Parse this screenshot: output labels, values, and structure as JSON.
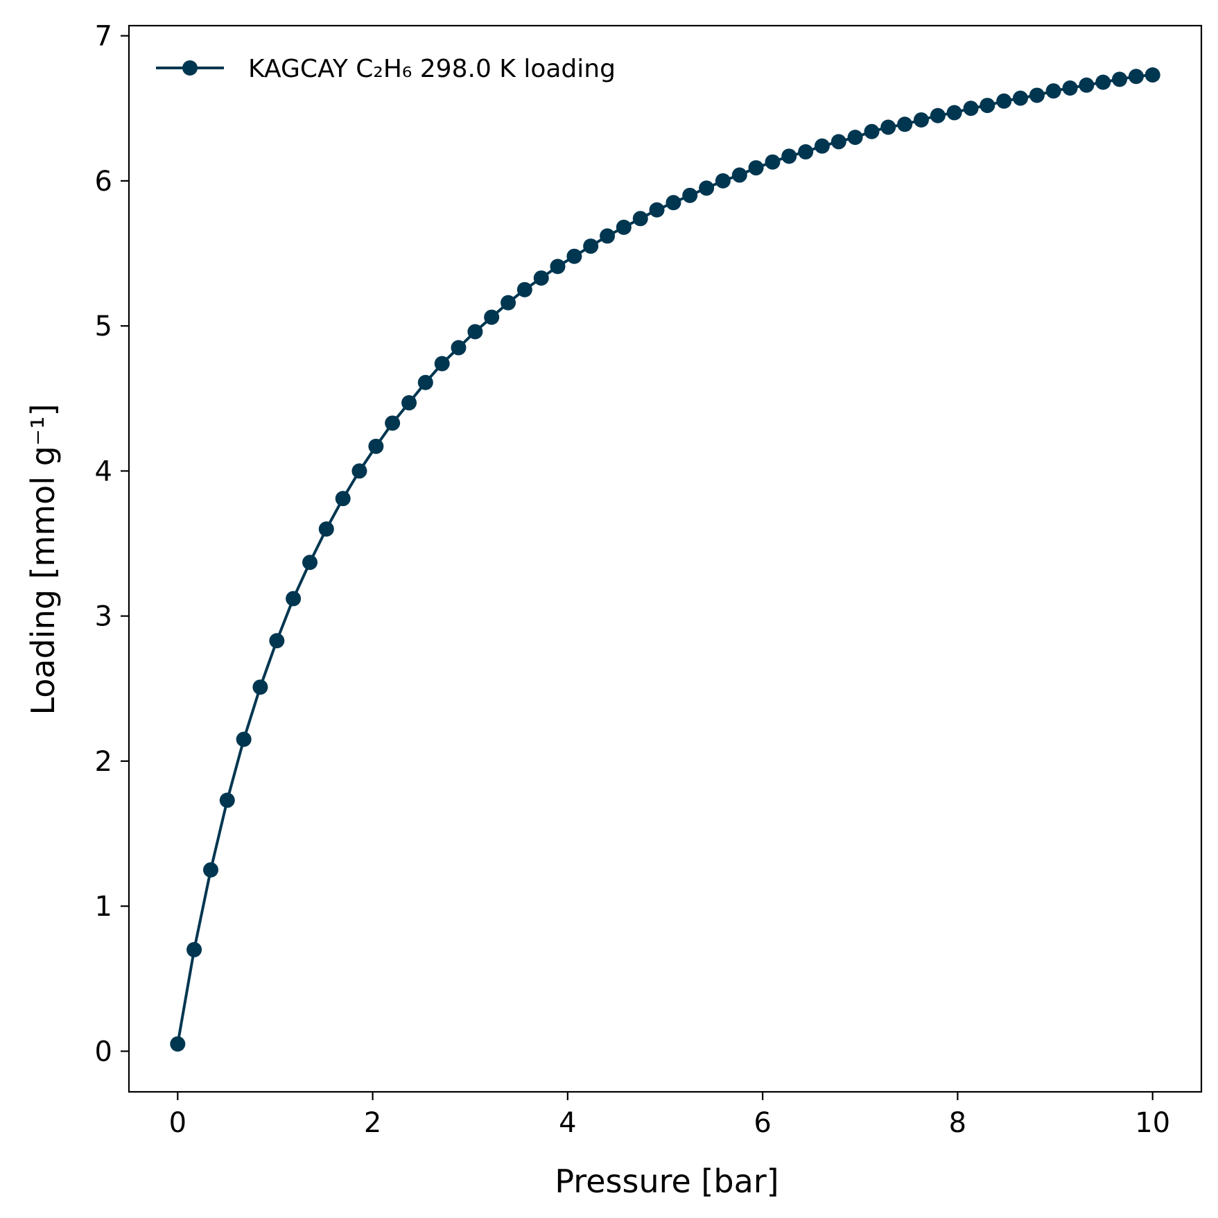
{
  "chart_data": {
    "type": "line",
    "title": "",
    "xlabel": "Pressure [bar]",
    "ylabel": "Loading [mmol g⁻¹]",
    "xlim": [
      -0.5,
      10.5
    ],
    "ylim": [
      -0.28,
      7.07
    ],
    "xticks": [
      "0",
      "2",
      "4",
      "6",
      "8",
      "10"
    ],
    "yticks": [
      "0",
      "1",
      "2",
      "3",
      "4",
      "5",
      "6",
      "7"
    ],
    "grid": false,
    "legend_position": "top-left",
    "series": [
      {
        "name": "KAGCAY C₂H₆ 298.0 K loading",
        "color": "#003650",
        "marker": "circle",
        "x": [
          0.0,
          0.169,
          0.339,
          0.508,
          0.678,
          0.847,
          1.017,
          1.186,
          1.356,
          1.525,
          1.695,
          1.864,
          2.034,
          2.203,
          2.373,
          2.542,
          2.712,
          2.881,
          3.051,
          3.22,
          3.39,
          3.559,
          3.729,
          3.898,
          4.068,
          4.237,
          4.407,
          4.576,
          4.746,
          4.915,
          5.085,
          5.254,
          5.424,
          5.593,
          5.763,
          5.932,
          6.102,
          6.271,
          6.441,
          6.61,
          6.78,
          6.949,
          7.119,
          7.288,
          7.458,
          7.627,
          7.797,
          7.966,
          8.136,
          8.305,
          8.475,
          8.644,
          8.814,
          8.983,
          9.153,
          9.322,
          9.492,
          9.661,
          9.831,
          10.0
        ],
        "y": [
          0.05,
          0.7,
          1.25,
          1.73,
          2.15,
          2.51,
          2.83,
          3.12,
          3.37,
          3.6,
          3.81,
          4.0,
          4.17,
          4.33,
          4.47,
          4.61,
          4.74,
          4.85,
          4.96,
          5.06,
          5.16,
          5.25,
          5.33,
          5.41,
          5.48,
          5.55,
          5.62,
          5.68,
          5.74,
          5.8,
          5.85,
          5.9,
          5.95,
          6.0,
          6.04,
          6.09,
          6.13,
          6.17,
          6.2,
          6.24,
          6.27,
          6.3,
          6.34,
          6.37,
          6.39,
          6.42,
          6.45,
          6.47,
          6.5,
          6.52,
          6.55,
          6.57,
          6.59,
          6.62,
          6.64,
          6.66,
          6.68,
          6.7,
          6.72,
          6.73
        ]
      }
    ]
  }
}
